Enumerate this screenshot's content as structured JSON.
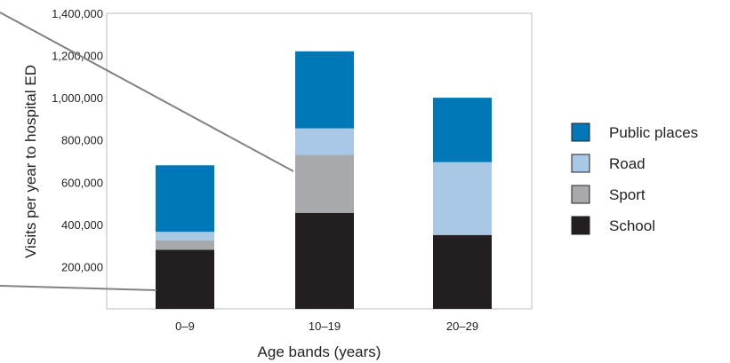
{
  "chart_data": {
    "type": "bar",
    "stacked": true,
    "categories": [
      "0–9",
      "10–19",
      "20–29"
    ],
    "series": [
      {
        "name": "School",
        "values": [
          280000,
          455000,
          350000
        ],
        "color": "#231f20"
      },
      {
        "name": "Sport",
        "values": [
          45000,
          275000,
          0
        ],
        "color": "#a7a9ac"
      },
      {
        "name": "Road",
        "values": [
          40000,
          125000,
          345000
        ],
        "color": "#a9c8e6"
      },
      {
        "name": "Public places",
        "values": [
          315000,
          365000,
          305000
        ],
        "color": "#0077b6"
      }
    ],
    "ylim": [
      0,
      1400000
    ],
    "yticks": [
      200000,
      400000,
      600000,
      800000,
      1000000,
      1200000,
      1400000
    ],
    "ytick_labels": [
      "200,000",
      "400,000",
      "600,000",
      "800,000",
      "1,000,000",
      "1,200,000",
      "1,400,000"
    ],
    "xlabel": "Age bands (years)",
    "ylabel": "Visits per year to hospital ED",
    "legend_position": "right",
    "legend_order": [
      "Public places",
      "Road",
      "Sport",
      "School"
    ],
    "grid": false
  }
}
